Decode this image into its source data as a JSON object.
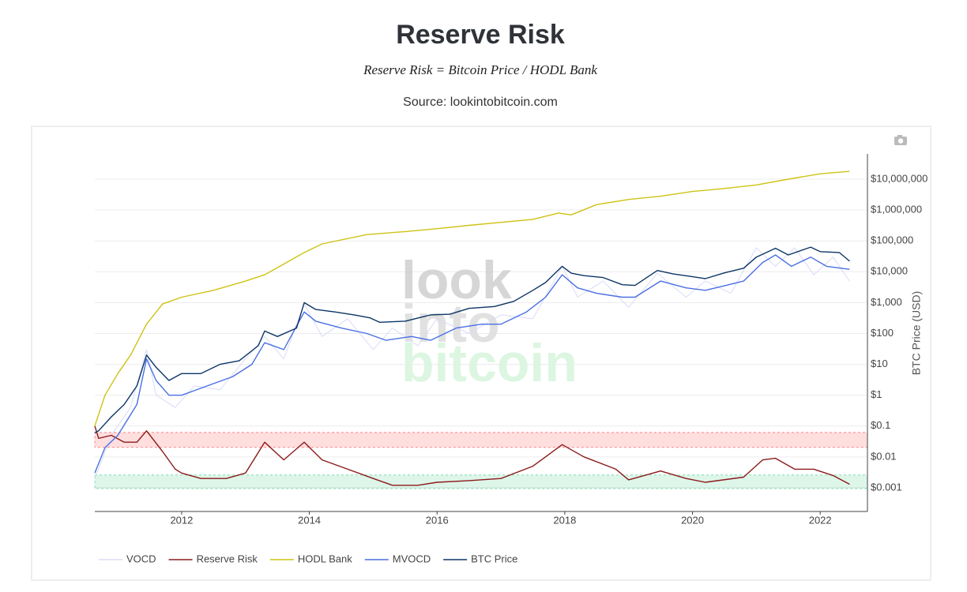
{
  "chart_data": {
    "type": "line",
    "title": "Reserve Risk",
    "subtitle": "Reserve Risk = Bitcoin Price / HODL Bank",
    "source": "Source: lookintobitcoin.com",
    "watermark": [
      "look",
      "into",
      "bitcoin"
    ],
    "y_label": "BTC Price (USD)",
    "yscale": "log",
    "grid": true,
    "legend": "bottom-left",
    "xlim": [
      2010.64,
      2022.74
    ],
    "xticks": [
      2012,
      2014,
      2016,
      2018,
      2020,
      2022
    ],
    "ylim": [
      0.00017,
      66000000
    ],
    "yticks": [
      {
        "value": 0.001,
        "label": "$0.001"
      },
      {
        "value": 0.01,
        "label": "$0.01"
      },
      {
        "value": 0.1,
        "label": "$0.1"
      },
      {
        "value": 1,
        "label": "$1"
      },
      {
        "value": 10,
        "label": "$10"
      },
      {
        "value": 100,
        "label": "$100"
      },
      {
        "value": 1000,
        "label": "$1,000"
      },
      {
        "value": 10000,
        "label": "$10,000"
      },
      {
        "value": 100000,
        "label": "$100,000"
      },
      {
        "value": 1000000,
        "label": "$1,000,000"
      },
      {
        "value": 10000000,
        "label": "$10,000,000"
      }
    ],
    "bands": [
      {
        "y0": 0.0204,
        "y1": 0.062,
        "color": "#ff0000"
      },
      {
        "y0": 0.00094,
        "y1": 0.0026,
        "color": "#00b860"
      }
    ],
    "series": [
      {
        "name": "VOCD",
        "color": "#d9dbf7",
        "x": [
          2010.64,
          2010.9,
          2011.2,
          2011.45,
          2011.6,
          2011.9,
          2012.2,
          2012.6,
          2013.0,
          2013.3,
          2013.6,
          2013.92,
          2014.2,
          2014.6,
          2015.0,
          2015.3,
          2015.7,
          2016.0,
          2016.5,
          2017.0,
          2017.5,
          2017.96,
          2018.2,
          2018.6,
          2019.0,
          2019.45,
          2019.9,
          2020.2,
          2020.6,
          2021.0,
          2021.3,
          2021.6,
          2021.9,
          2022.2,
          2022.46
        ],
        "values": [
          0.002,
          0.05,
          0.4,
          30,
          1,
          0.4,
          2,
          1.5,
          15,
          80,
          15,
          900,
          80,
          300,
          30,
          150,
          40,
          300,
          100,
          400,
          300,
          15000,
          1500,
          5000,
          700,
          9000,
          1500,
          5000,
          2000,
          60000,
          15000,
          60000,
          8000,
          30000,
          5000
        ]
      },
      {
        "name": "Reserve Risk",
        "color": "#8b1a1a",
        "x": [
          2010.64,
          2010.7,
          2010.9,
          2011.1,
          2011.3,
          2011.45,
          2011.7,
          2011.9,
          2012.0,
          2012.3,
          2012.7,
          2013.0,
          2013.3,
          2013.6,
          2013.92,
          2014.2,
          2014.6,
          2015.0,
          2015.3,
          2015.7,
          2016.0,
          2016.5,
          2017.0,
          2017.5,
          2017.96,
          2018.3,
          2018.8,
          2019.0,
          2019.5,
          2019.9,
          2020.2,
          2020.8,
          2021.1,
          2021.3,
          2021.6,
          2021.9,
          2022.2,
          2022.46
        ],
        "values": [
          0.1,
          0.04,
          0.05,
          0.03,
          0.03,
          0.07,
          0.015,
          0.004,
          0.003,
          0.002,
          0.002,
          0.003,
          0.03,
          0.008,
          0.03,
          0.008,
          0.004,
          0.002,
          0.0012,
          0.0012,
          0.0015,
          0.0017,
          0.002,
          0.005,
          0.025,
          0.01,
          0.004,
          0.0018,
          0.0035,
          0.002,
          0.0015,
          0.0022,
          0.008,
          0.009,
          0.004,
          0.004,
          0.0025,
          0.0013
        ]
      },
      {
        "name": "HODL Bank",
        "color": "#cfc214",
        "x": [
          2010.64,
          2010.8,
          2011.0,
          2011.2,
          2011.45,
          2011.7,
          2012.0,
          2012.5,
          2013.0,
          2013.3,
          2013.9,
          2014.2,
          2014.9,
          2015.5,
          2016.0,
          2016.5,
          2017.0,
          2017.5,
          2017.9,
          2018.1,
          2018.5,
          2019.0,
          2019.5,
          2020.0,
          2020.5,
          2021.0,
          2021.5,
          2022.0,
          2022.46
        ],
        "values": [
          0.1,
          1,
          5,
          20,
          200,
          900,
          1500,
          2500,
          5000,
          8000,
          40000,
          80000,
          160000,
          200000,
          250000,
          320000,
          400000,
          500000,
          800000,
          700000,
          1500000,
          2200000,
          2800000,
          4000000,
          5000000,
          6500000,
          10000000,
          15000000,
          18000000
        ]
      },
      {
        "name": "MVOCD",
        "color": "#4a6fe3",
        "x": [
          2010.64,
          2010.8,
          2011.0,
          2011.3,
          2011.45,
          2011.6,
          2011.8,
          2012.0,
          2012.4,
          2012.8,
          2013.1,
          2013.3,
          2013.6,
          2013.92,
          2014.1,
          2014.5,
          2014.9,
          2015.2,
          2015.6,
          2015.9,
          2016.3,
          2016.7,
          2017.0,
          2017.4,
          2017.7,
          2017.96,
          2018.2,
          2018.5,
          2018.9,
          2019.1,
          2019.5,
          2019.9,
          2020.2,
          2020.5,
          2020.8,
          2021.1,
          2021.3,
          2021.55,
          2021.85,
          2022.1,
          2022.46
        ],
        "values": [
          0.003,
          0.02,
          0.05,
          0.5,
          15,
          3,
          1,
          1,
          2,
          4,
          10,
          50,
          30,
          500,
          250,
          150,
          100,
          60,
          80,
          60,
          150,
          200,
          200,
          500,
          1500,
          8000,
          3000,
          2000,
          1500,
          1500,
          5000,
          3000,
          2500,
          3500,
          5000,
          20000,
          35000,
          15000,
          30000,
          15000,
          12000
        ]
      },
      {
        "name": "BTC Price",
        "color": "#0b3566",
        "x": [
          2010.64,
          2010.7,
          2010.9,
          2011.1,
          2011.3,
          2011.45,
          2011.6,
          2011.8,
          2012.0,
          2012.3,
          2012.6,
          2012.9,
          2013.2,
          2013.3,
          2013.5,
          2013.8,
          2013.92,
          2014.1,
          2014.4,
          2014.7,
          2014.95,
          2015.1,
          2015.5,
          2015.9,
          2016.2,
          2016.5,
          2016.9,
          2017.2,
          2017.5,
          2017.7,
          2017.96,
          2018.1,
          2018.3,
          2018.6,
          2018.9,
          2019.1,
          2019.45,
          2019.7,
          2019.95,
          2020.2,
          2020.5,
          2020.8,
          2021.0,
          2021.3,
          2021.5,
          2021.85,
          2022.0,
          2022.3,
          2022.46
        ],
        "values": [
          0.06,
          0.07,
          0.2,
          0.5,
          2,
          20,
          8,
          3,
          5,
          5,
          10,
          13,
          40,
          120,
          80,
          150,
          1000,
          600,
          500,
          400,
          320,
          230,
          250,
          400,
          420,
          650,
          750,
          1100,
          2500,
          4500,
          15000,
          9000,
          7500,
          6500,
          3800,
          3600,
          11000,
          8500,
          7200,
          6000,
          9200,
          13000,
          30000,
          58000,
          35000,
          63000,
          45000,
          42000,
          22000
        ]
      }
    ]
  }
}
